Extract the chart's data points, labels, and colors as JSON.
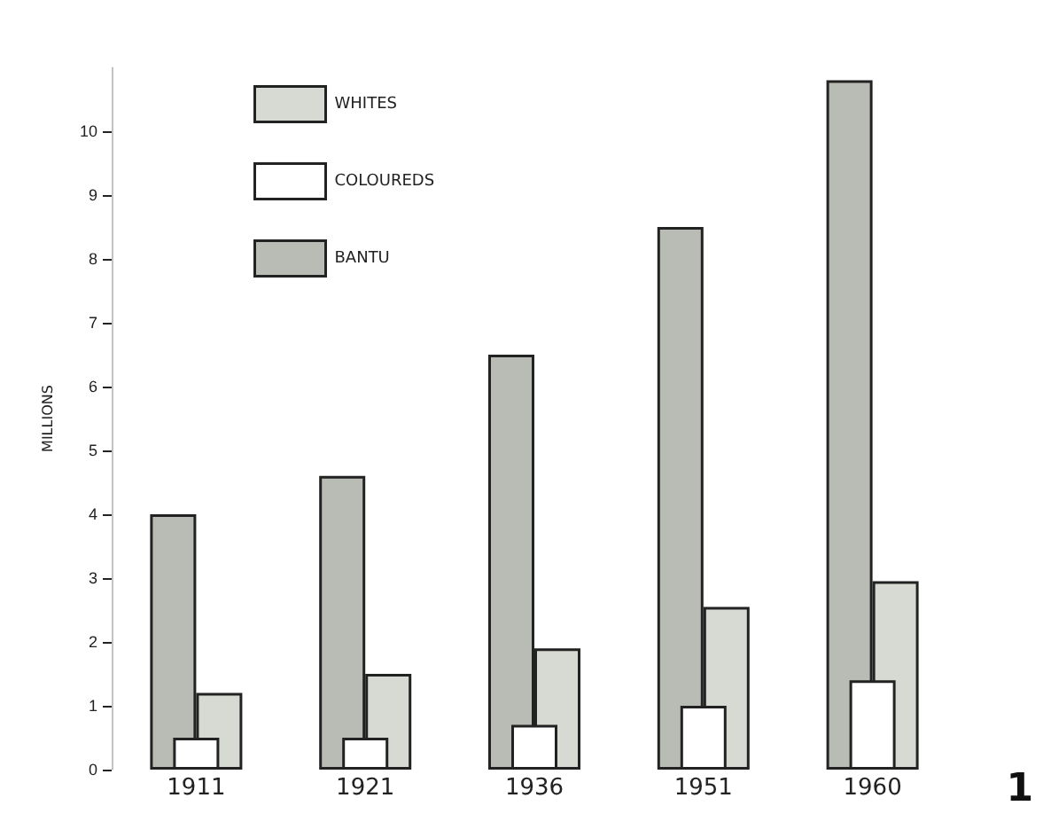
{
  "chart_data": {
    "type": "bar",
    "ylabel": "MILLIONS",
    "categories": [
      "1911",
      "1921",
      "1936",
      "1951",
      "1960"
    ],
    "series": [
      {
        "name": "WHITES",
        "color": "#d6dad2",
        "values": [
          1.2,
          1.5,
          1.9,
          2.55,
          2.95
        ]
      },
      {
        "name": "COLOUREDS",
        "color": "#ffffff",
        "values": [
          0.5,
          0.5,
          0.7,
          1.0,
          1.4
        ]
      },
      {
        "name": "BANTU",
        "color": "#b8bcb4",
        "values": [
          4.0,
          4.6,
          6.5,
          8.5,
          10.8
        ]
      }
    ],
    "ylim": [
      0,
      11
    ],
    "yticks": [
      0,
      1,
      2,
      3,
      4,
      5,
      6,
      7,
      8,
      9,
      10
    ],
    "grid": false,
    "legend": "top left",
    "annotations": [
      "1"
    ]
  }
}
